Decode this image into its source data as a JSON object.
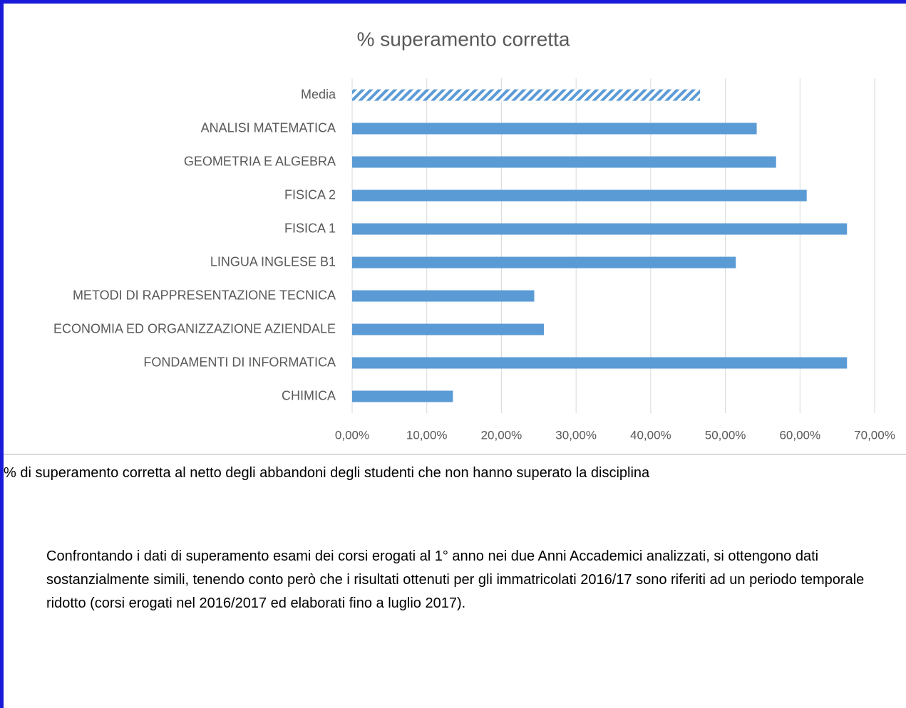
{
  "chart_data": {
    "type": "bar",
    "orientation": "horizontal",
    "title": "% superamento corretta",
    "categories": [
      "Media",
      "ANALISI MATEMATICA",
      "GEOMETRIA E ALGEBRA",
      "FISICA 2",
      "FISICA 1",
      "LINGUA INGLESE B1",
      "METODI DI RAPPRESENTAZIONE TECNICA",
      "ECONOMIA ED ORGANIZZAZIONE AZIENDALE",
      "FONDAMENTI DI INFORMATICA",
      "CHIMICA"
    ],
    "values": [
      46.6,
      54.2,
      56.8,
      60.9,
      66.3,
      51.4,
      24.4,
      25.7,
      66.3,
      13.5
    ],
    "bar_styles": [
      "hatched",
      "solid",
      "solid",
      "solid",
      "solid",
      "solid",
      "solid",
      "solid",
      "solid",
      "solid"
    ],
    "color": "#5b9bd5",
    "xlim": [
      0,
      70
    ],
    "xticks": [
      {
        "value": 0,
        "label": "0,00%"
      },
      {
        "value": 10,
        "label": "10,00%"
      },
      {
        "value": 20,
        "label": "20,00%"
      },
      {
        "value": 30,
        "label": "30,00%"
      },
      {
        "value": 40,
        "label": "40,00%"
      },
      {
        "value": 50,
        "label": "50,00%"
      },
      {
        "value": 60,
        "label": "60,00%"
      },
      {
        "value": 70,
        "label": "70,00%"
      }
    ],
    "grid": true
  },
  "caption": "% di superamento corretta al netto degli abbandoni degli studenti che non hanno superato la disciplina",
  "paragraph": "Confrontando i dati di superamento esami dei corsi erogati al 1° anno nei due Anni Accademici analizzati, si ottengono dati sostanzialmente simili, tenendo conto però che i risultati ottenuti per gli immatricolati 2016/17 sono riferiti ad un periodo temporale ridotto (corsi erogati nel 2016/2017 ed elaborati fino a luglio 2017)."
}
